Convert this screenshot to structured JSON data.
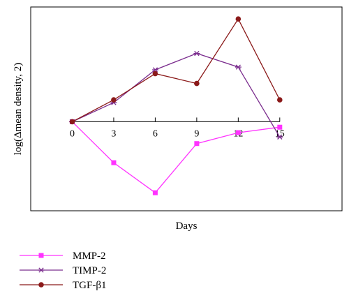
{
  "chart_data": {
    "type": "line",
    "x": [
      0,
      3,
      6,
      9,
      12,
      15
    ],
    "x_ticks": [
      "0",
      "3",
      "6",
      "9",
      "12",
      "15"
    ],
    "xlabel": "Days",
    "ylabel": "log(Δmean density, 2)",
    "xlim": [
      -3,
      19.5
    ],
    "ylim": [
      -1.63,
      2.1
    ],
    "grid": false,
    "legend_position": "bottom-left",
    "series": [
      {
        "name": "MMP-2",
        "color": "#ff33ff",
        "marker": "square",
        "values": [
          0,
          -0.75,
          -1.3,
          -0.4,
          -0.2,
          -0.1
        ]
      },
      {
        "name": "TIMP-2",
        "color": "#7b2d8e",
        "marker": "asterisk",
        "values": [
          0,
          0.35,
          0.95,
          1.25,
          1.0,
          -0.28
        ]
      },
      {
        "name": "TGF-β1",
        "color": "#8b1a1a",
        "marker": "circle",
        "values": [
          0,
          0.4,
          0.88,
          0.7,
          1.88,
          0.4
        ]
      }
    ]
  }
}
